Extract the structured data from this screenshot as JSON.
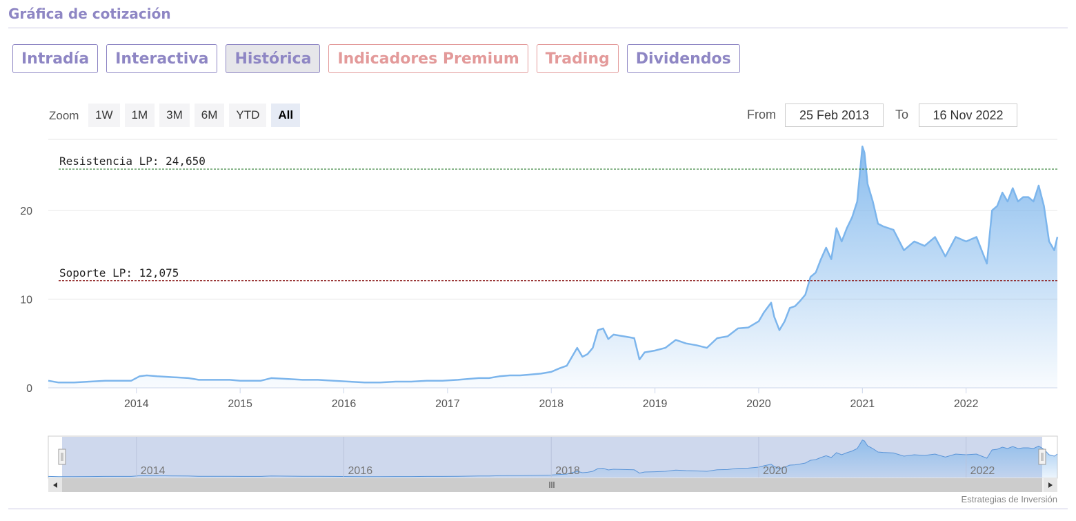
{
  "title": "Gráfica de cotización",
  "tabs": [
    {
      "label": "Intradía",
      "kind": "normal"
    },
    {
      "label": "Interactiva",
      "kind": "normal"
    },
    {
      "label": "Histórica",
      "kind": "active"
    },
    {
      "label": "Indicadores Premium",
      "kind": "premium"
    },
    {
      "label": "Trading",
      "kind": "premium"
    },
    {
      "label": "Dividendos",
      "kind": "normal"
    }
  ],
  "zoom": {
    "label": "Zoom",
    "buttons": [
      "1W",
      "1M",
      "3M",
      "6M",
      "YTD",
      "All"
    ],
    "selected": "All"
  },
  "range": {
    "from_label": "From",
    "from_value": "25 Feb 2013",
    "to_label": "To",
    "to_value": "16 Nov 2022"
  },
  "credit": "Estrategias de Inversión",
  "colors": {
    "accent": "#8e86c4",
    "premium": "#e39a9a",
    "series": "#7cb5ec",
    "resistance": "#2e7d32",
    "support": "#8b1a1a",
    "navigator_mask": "#c6d1ea"
  },
  "chart_data": {
    "type": "area",
    "ylim": [
      0,
      28
    ],
    "yticks": [
      0,
      10,
      20
    ],
    "x_range": [
      2013.15,
      2022.88
    ],
    "xticks": [
      "2014",
      "2015",
      "2016",
      "2017",
      "2018",
      "2019",
      "2020",
      "2021",
      "2022"
    ],
    "navigator_ticks": [
      "2014",
      "2016",
      "2018",
      "2020",
      "2022"
    ],
    "grid": true,
    "legend": "none",
    "annotations": [
      {
        "label": "Resistencia LP: 24,650",
        "value": 24.65,
        "color": "#2e7d32"
      },
      {
        "label": "Soporte LP: 12,075",
        "value": 12.075,
        "color": "#8b1a1a"
      }
    ],
    "series": [
      {
        "x": [
          2013.15,
          2013.25,
          2013.4,
          2013.55,
          2013.7,
          2013.85,
          2013.95,
          2014.03,
          2014.1,
          2014.2,
          2014.35,
          2014.5,
          2014.6,
          2014.75,
          2014.9,
          2015.0,
          2015.1,
          2015.2,
          2015.3,
          2015.45,
          2015.6,
          2015.75,
          2015.9,
          2016.05,
          2016.2,
          2016.35,
          2016.5,
          2016.65,
          2016.8,
          2016.95,
          2017.1,
          2017.2,
          2017.3,
          2017.4,
          2017.5,
          2017.6,
          2017.7,
          2017.8,
          2017.9,
          2018.0,
          2018.08,
          2018.15,
          2018.2,
          2018.25,
          2018.3,
          2018.35,
          2018.4,
          2018.45,
          2018.5,
          2018.55,
          2018.6,
          2018.7,
          2018.8,
          2018.85,
          2018.9,
          2019.0,
          2019.1,
          2019.2,
          2019.3,
          2019.4,
          2019.5,
          2019.6,
          2019.7,
          2019.8,
          2019.9,
          2020.0,
          2020.05,
          2020.12,
          2020.15,
          2020.2,
          2020.25,
          2020.3,
          2020.35,
          2020.4,
          2020.45,
          2020.5,
          2020.55,
          2020.6,
          2020.65,
          2020.7,
          2020.75,
          2020.8,
          2020.85,
          2020.9,
          2020.95,
          2021.0,
          2021.02,
          2021.05,
          2021.1,
          2021.15,
          2021.2,
          2021.3,
          2021.4,
          2021.5,
          2021.6,
          2021.7,
          2021.8,
          2021.9,
          2022.0,
          2022.1,
          2022.15,
          2022.2,
          2022.25,
          2022.3,
          2022.35,
          2022.4,
          2022.45,
          2022.5,
          2022.55,
          2022.6,
          2022.65,
          2022.7,
          2022.75,
          2022.8,
          2022.85,
          2022.88
        ],
        "values": [
          0.8,
          0.6,
          0.6,
          0.7,
          0.8,
          0.8,
          0.8,
          1.3,
          1.4,
          1.3,
          1.2,
          1.1,
          0.9,
          0.9,
          0.9,
          0.8,
          0.8,
          0.8,
          1.1,
          1.0,
          0.9,
          0.9,
          0.8,
          0.7,
          0.6,
          0.6,
          0.7,
          0.7,
          0.8,
          0.8,
          0.9,
          1.0,
          1.1,
          1.1,
          1.3,
          1.4,
          1.4,
          1.5,
          1.6,
          1.8,
          2.2,
          2.5,
          3.5,
          4.5,
          3.5,
          3.8,
          4.5,
          6.5,
          6.7,
          5.5,
          6.0,
          5.8,
          5.6,
          3.2,
          4.0,
          4.2,
          4.5,
          5.4,
          5.0,
          4.8,
          4.5,
          5.6,
          5.8,
          6.7,
          6.8,
          7.5,
          8.5,
          9.6,
          8.0,
          6.5,
          7.5,
          9.0,
          9.2,
          9.8,
          10.5,
          12.5,
          13.0,
          14.5,
          15.8,
          14.5,
          18.0,
          16.5,
          18.0,
          19.2,
          21.0,
          27.2,
          26.5,
          23.0,
          21.0,
          18.5,
          18.2,
          17.8,
          15.5,
          16.5,
          16.0,
          17.0,
          14.8,
          17.0,
          16.5,
          17.0,
          15.5,
          14.0,
          20.0,
          20.5,
          22.0,
          21.0,
          22.5,
          21.0,
          21.5,
          21.5,
          21.0,
          22.8,
          20.5,
          16.5,
          15.5,
          17.0
        ]
      }
    ]
  }
}
